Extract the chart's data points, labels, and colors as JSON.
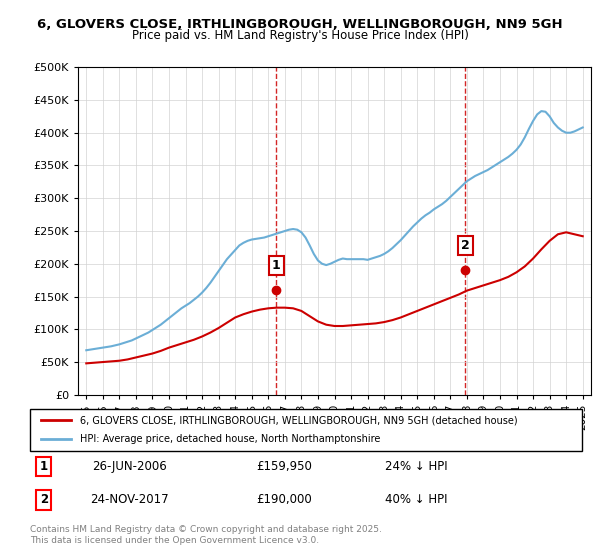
{
  "title1": "6, GLOVERS CLOSE, IRTHLINGBOROUGH, WELLINGBOROUGH, NN9 5GH",
  "title2": "Price paid vs. HM Land Registry's House Price Index (HPI)",
  "legend_line1": "6, GLOVERS CLOSE, IRTHLINGBOROUGH, WELLINGBOROUGH, NN9 5GH (detached house)",
  "legend_line2": "HPI: Average price, detached house, North Northamptonshire",
  "sale1_date": "26-JUN-2006",
  "sale1_price": "£159,950",
  "sale1_hpi": "24% ↓ HPI",
  "sale2_date": "24-NOV-2017",
  "sale2_price": "£190,000",
  "sale2_hpi": "40% ↓ HPI",
  "footer": "Contains HM Land Registry data © Crown copyright and database right 2025.\nThis data is licensed under the Open Government Licence v3.0.",
  "sale1_x": 2006.49,
  "sale1_y": 159950,
  "sale2_x": 2017.9,
  "sale2_y": 190000,
  "vline1_x": 2006.49,
  "vline2_x": 2017.9,
  "hpi_color": "#6baed6",
  "price_color": "#cc0000",
  "vline_color": "#cc0000",
  "background_color": "#ffffff",
  "ylim": [
    0,
    500000
  ],
  "xlim": [
    1994.5,
    2025.5
  ],
  "yticks": [
    0,
    50000,
    100000,
    150000,
    200000,
    250000,
    300000,
    350000,
    400000,
    450000,
    500000
  ],
  "ytick_labels": [
    "£0",
    "£50K",
    "£100K",
    "£150K",
    "£200K",
    "£250K",
    "£300K",
    "£350K",
    "£400K",
    "£450K",
    "£500K"
  ],
  "hpi_years": [
    1995,
    1995.25,
    1995.5,
    1995.75,
    1996,
    1996.25,
    1996.5,
    1996.75,
    1997,
    1997.25,
    1997.5,
    1997.75,
    1998,
    1998.25,
    1998.5,
    1998.75,
    1999,
    1999.25,
    1999.5,
    1999.75,
    2000,
    2000.25,
    2000.5,
    2000.75,
    2001,
    2001.25,
    2001.5,
    2001.75,
    2002,
    2002.25,
    2002.5,
    2002.75,
    2003,
    2003.25,
    2003.5,
    2003.75,
    2004,
    2004.25,
    2004.5,
    2004.75,
    2005,
    2005.25,
    2005.5,
    2005.75,
    2006,
    2006.25,
    2006.5,
    2006.75,
    2007,
    2007.25,
    2007.5,
    2007.75,
    2008,
    2008.25,
    2008.5,
    2008.75,
    2009,
    2009.25,
    2009.5,
    2009.75,
    2010,
    2010.25,
    2010.5,
    2010.75,
    2011,
    2011.25,
    2011.5,
    2011.75,
    2012,
    2012.25,
    2012.5,
    2012.75,
    2013,
    2013.25,
    2013.5,
    2013.75,
    2014,
    2014.25,
    2014.5,
    2014.75,
    2015,
    2015.25,
    2015.5,
    2015.75,
    2016,
    2016.25,
    2016.5,
    2016.75,
    2017,
    2017.25,
    2017.5,
    2017.75,
    2018,
    2018.25,
    2018.5,
    2018.75,
    2019,
    2019.25,
    2019.5,
    2019.75,
    2020,
    2020.25,
    2020.5,
    2020.75,
    2021,
    2021.25,
    2021.5,
    2021.75,
    2022,
    2022.25,
    2022.5,
    2022.75,
    2023,
    2023.25,
    2023.5,
    2023.75,
    2024,
    2024.25,
    2024.5,
    2024.75,
    2025
  ],
  "hpi_values": [
    68000,
    69000,
    70000,
    71000,
    72000,
    73000,
    74000,
    75500,
    77000,
    79000,
    81000,
    83000,
    86000,
    89000,
    92000,
    95000,
    99000,
    103000,
    107000,
    112000,
    117000,
    122000,
    127000,
    132000,
    136000,
    140000,
    145000,
    150000,
    156000,
    163000,
    171000,
    180000,
    189000,
    198000,
    207000,
    214000,
    221000,
    228000,
    232000,
    235000,
    237000,
    238000,
    239000,
    240000,
    242000,
    244000,
    246000,
    248000,
    250000,
    252000,
    253000,
    252000,
    248000,
    240000,
    228000,
    215000,
    205000,
    200000,
    198000,
    200000,
    203000,
    206000,
    208000,
    207000,
    207000,
    207000,
    207000,
    207000,
    206000,
    208000,
    210000,
    212000,
    215000,
    219000,
    224000,
    230000,
    236000,
    243000,
    250000,
    257000,
    263000,
    269000,
    274000,
    278000,
    283000,
    287000,
    291000,
    296000,
    302000,
    308000,
    314000,
    320000,
    326000,
    330000,
    334000,
    337000,
    340000,
    343000,
    347000,
    351000,
    355000,
    359000,
    363000,
    368000,
    374000,
    382000,
    393000,
    406000,
    418000,
    428000,
    433000,
    432000,
    425000,
    415000,
    408000,
    403000,
    400000,
    400000,
    402000,
    405000,
    408000
  ],
  "price_years": [
    1995,
    1995.5,
    1996,
    1996.5,
    1997,
    1997.5,
    1998,
    1998.5,
    1999,
    1999.5,
    2000,
    2000.5,
    2001,
    2001.5,
    2002,
    2002.5,
    2003,
    2003.5,
    2004,
    2004.5,
    2005,
    2005.5,
    2006,
    2006.5,
    2007,
    2007.5,
    2008,
    2008.5,
    2009,
    2009.5,
    2010,
    2010.5,
    2011,
    2011.5,
    2012,
    2012.5,
    2013,
    2013.5,
    2014,
    2014.5,
    2015,
    2015.5,
    2016,
    2016.5,
    2017,
    2017.5,
    2018,
    2018.5,
    2019,
    2019.5,
    2020,
    2020.5,
    2021,
    2021.5,
    2022,
    2022.5,
    2023,
    2023.5,
    2024,
    2024.5,
    2025
  ],
  "price_values": [
    48000,
    49000,
    50000,
    51000,
    52000,
    54000,
    57000,
    60000,
    63000,
    67000,
    72000,
    76000,
    80000,
    84000,
    89000,
    95000,
    102000,
    110000,
    118000,
    123000,
    127000,
    130000,
    132000,
    133000,
    133000,
    132000,
    128000,
    120000,
    112000,
    107000,
    105000,
    105000,
    106000,
    107000,
    108000,
    109000,
    111000,
    114000,
    118000,
    123000,
    128000,
    133000,
    138000,
    143000,
    148000,
    153000,
    159000,
    163000,
    167000,
    171000,
    175000,
    180000,
    187000,
    196000,
    208000,
    222000,
    235000,
    245000,
    248000,
    245000,
    242000
  ]
}
